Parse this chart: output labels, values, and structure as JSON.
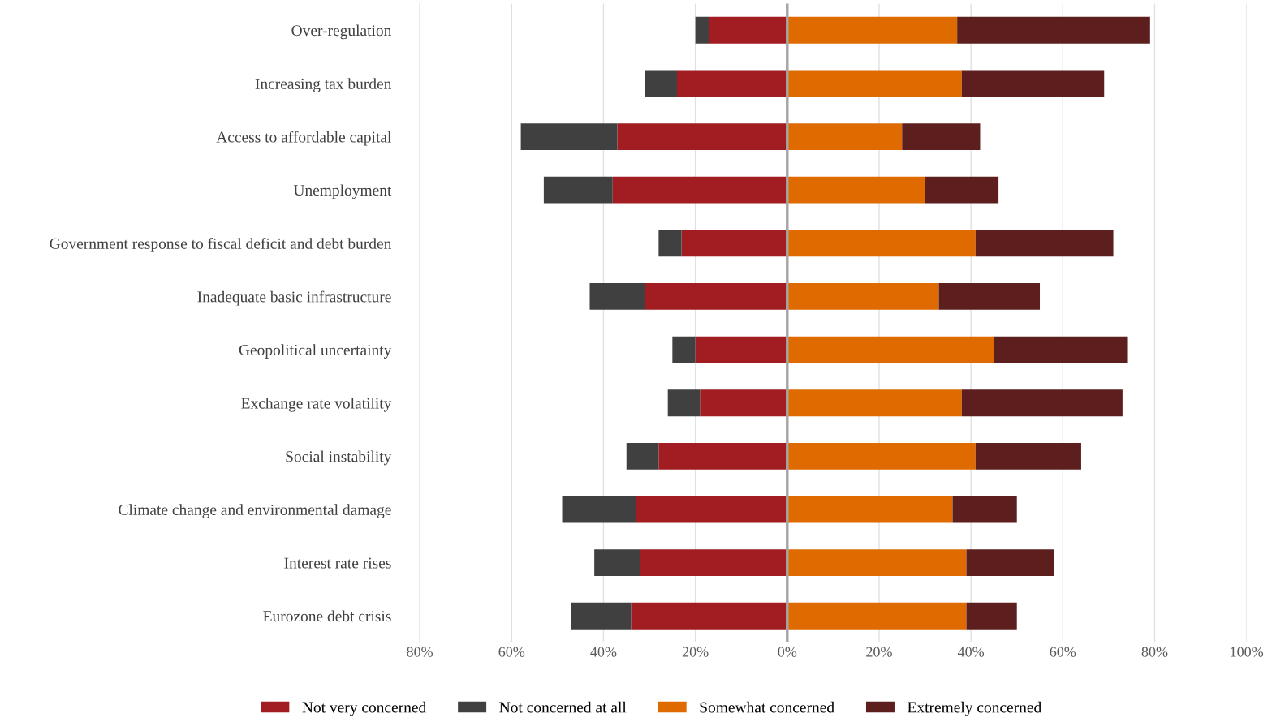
{
  "chart_data": {
    "type": "bar",
    "orientation": "horizontal",
    "stacked": true,
    "categories": [
      "Over-regulation",
      "Increasing tax burden",
      "Access to affordable capital",
      "Unemployment",
      "Government response to fiscal deficit and debt burden",
      "Inadequate basic infrastructure",
      "Geopolitical uncertainty",
      "Exchange rate volatility",
      "Social instability",
      "Climate change and environmental damage",
      "Interest rate rises",
      "Eurozone debt crisis"
    ],
    "series": [
      {
        "name": "Not very concerned",
        "color": "#a21d21",
        "values": [
          -17,
          -24,
          -37,
          -38,
          -23,
          -31,
          -20,
          -19,
          -28,
          -33,
          -32,
          -34
        ]
      },
      {
        "name": "Not concerned at all",
        "color": "#404040",
        "values": [
          -3,
          -7,
          -21,
          -15,
          -5,
          -12,
          -5,
          -7,
          -7,
          -16,
          -10,
          -13
        ]
      },
      {
        "name": "Somewhat concerned",
        "color": "#de6a00",
        "values": [
          37,
          38,
          25,
          30,
          41,
          33,
          45,
          38,
          41,
          36,
          39,
          39
        ]
      },
      {
        "name": "Extremely concerned",
        "color": "#5c1f1e",
        "values": [
          42,
          31,
          17,
          16,
          30,
          22,
          29,
          35,
          23,
          14,
          19,
          11
        ]
      }
    ],
    "xlim": [
      -80,
      100
    ],
    "xticks": [
      {
        "value": -80,
        "label": "80%"
      },
      {
        "value": -60,
        "label": "60%"
      },
      {
        "value": -40,
        "label": "40%"
      },
      {
        "value": -20,
        "label": "20%"
      },
      {
        "value": 0,
        "label": "0%"
      },
      {
        "value": 20,
        "label": "20%"
      },
      {
        "value": 40,
        "label": "40%"
      },
      {
        "value": 60,
        "label": "60%"
      },
      {
        "value": 80,
        "label": "80%"
      },
      {
        "value": 100,
        "label": "100%"
      }
    ],
    "ref_lines": [
      {
        "axis": "x",
        "value": 0,
        "color": "#a6a6a6"
      }
    ],
    "grid": "x",
    "legend": "bottom"
  }
}
